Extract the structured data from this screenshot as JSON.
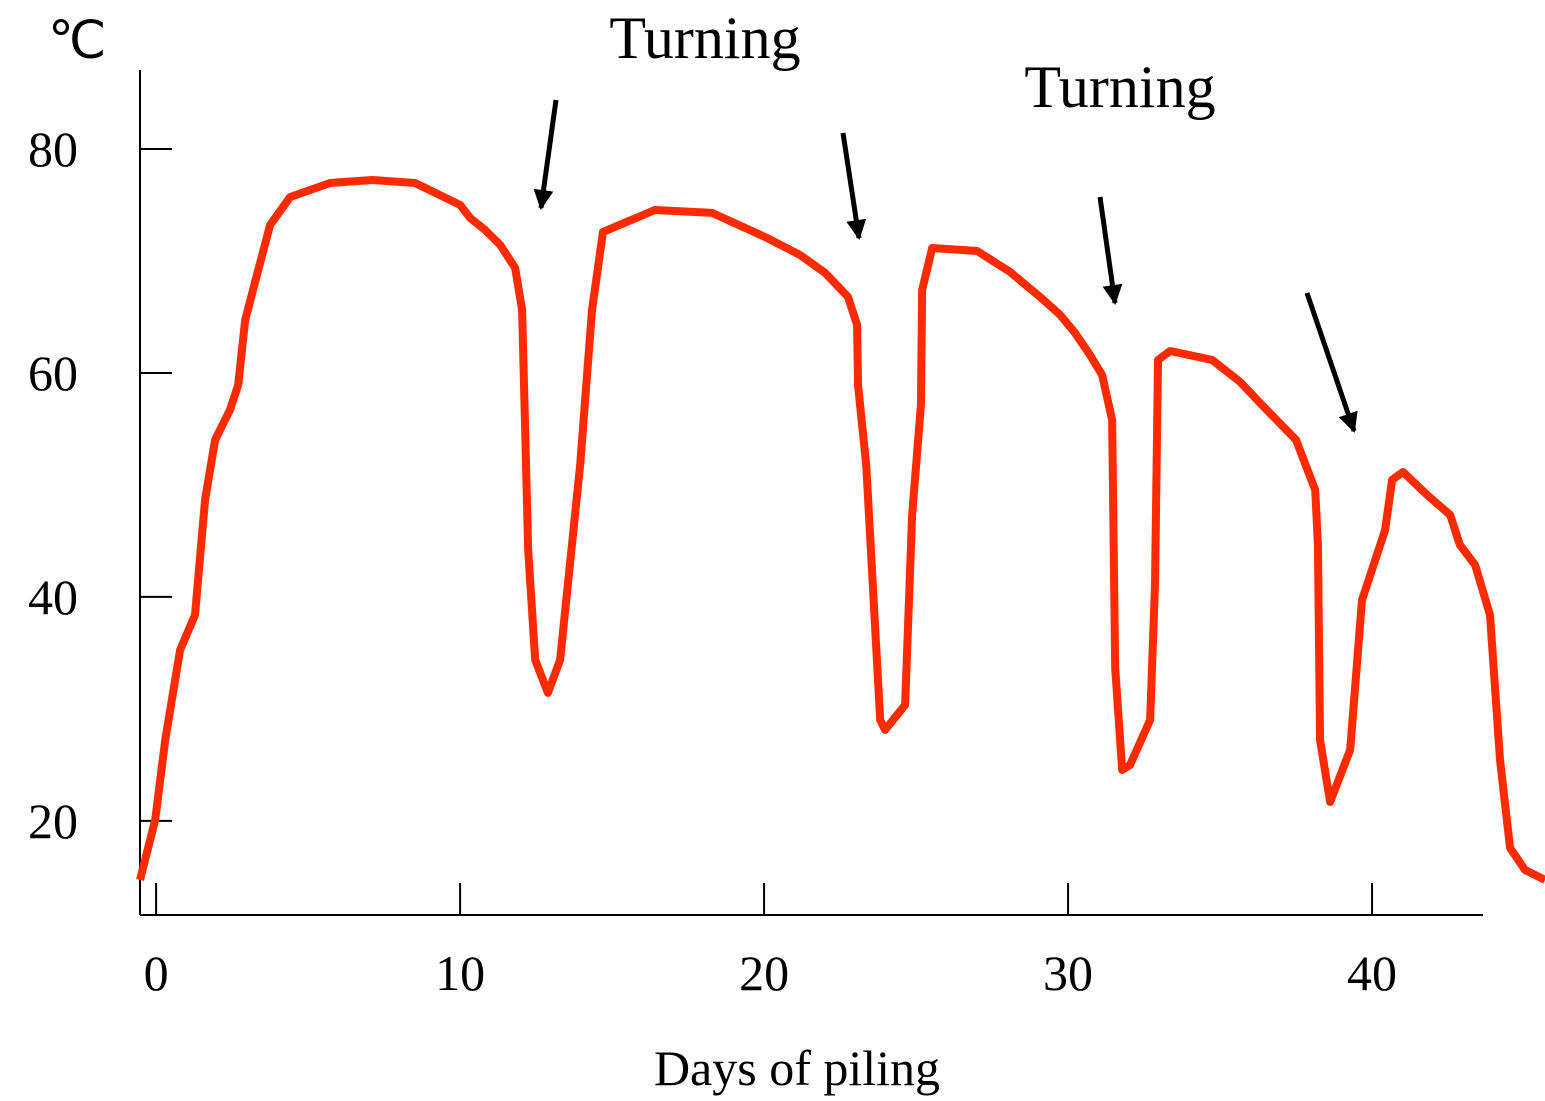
{
  "chart_data": {
    "type": "line",
    "ylabel": "℃",
    "xlabel": "Days of piling",
    "annotations": [
      "Turning",
      "Turning"
    ],
    "xlim": [
      -0.53,
      43.65
    ],
    "ylim": [
      11.6,
      87.05
    ],
    "xticks": [
      0,
      10,
      20,
      30,
      40
    ],
    "yticks": [
      20,
      40,
      60,
      80
    ],
    "x": [
      -0.53,
      -0.03,
      0.3,
      0.79,
      1.28,
      1.61,
      1.94,
      2.43,
      2.7,
      2.93,
      3.36,
      3.75,
      4.41,
      5.72,
      7.11,
      8.52,
      10.0,
      10.33,
      10.82,
      11.32,
      11.81,
      12.04,
      12.24,
      12.47,
      12.89,
      13.29,
      13.95,
      14.34,
      14.7,
      16.41,
      18.29,
      20.03,
      21.18,
      22.01,
      22.76,
      23.06,
      23.09,
      23.36,
      23.82,
      23.98,
      24.64,
      24.87,
      25.16,
      25.2,
      25.53,
      27.01,
      28.09,
      29.08,
      29.74,
      30.23,
      30.72,
      31.12,
      31.45,
      31.55,
      31.78,
      32.04,
      32.7,
      32.86,
      32.96,
      33.36,
      34.74,
      35.66,
      36.38,
      37.5,
      38.13,
      38.22,
      38.29,
      38.62,
      39.28,
      39.67,
      40.43,
      40.66,
      41.02,
      41.81,
      42.57,
      42.89,
      43.39,
      43.88,
      44.21,
      44.54,
      45.03,
      45.69
    ],
    "series": [
      {
        "color": "#ff2a00",
        "values": [
          14.73,
          20.09,
          27.23,
          35.27,
          38.39,
          48.66,
          54.02,
          56.7,
          58.93,
          64.73,
          69.2,
          73.21,
          75.71,
          76.96,
          77.23,
          76.96,
          75.0,
          73.84,
          72.77,
          71.43,
          69.38,
          65.63,
          44.2,
          34.38,
          31.43,
          34.38,
          51.79,
          65.63,
          72.59,
          74.55,
          74.29,
          72.14,
          70.54,
          68.93,
          66.79,
          64.29,
          58.93,
          51.79,
          29.02,
          28.13,
          30.36,
          47.32,
          57.14,
          67.41,
          71.16,
          70.89,
          69.02,
          66.79,
          65.18,
          63.57,
          61.61,
          59.82,
          55.8,
          33.66,
          24.55,
          25.0,
          29.02,
          41.07,
          61.16,
          61.96,
          61.16,
          59.2,
          57.14,
          54.02,
          49.55,
          44.64,
          27.23,
          21.7,
          26.34,
          39.73,
          45.98,
          50.45,
          51.16,
          49.11,
          47.32,
          44.64,
          42.86,
          38.39,
          25.45,
          17.59,
          15.63,
          14.73
        ]
      }
    ]
  }
}
